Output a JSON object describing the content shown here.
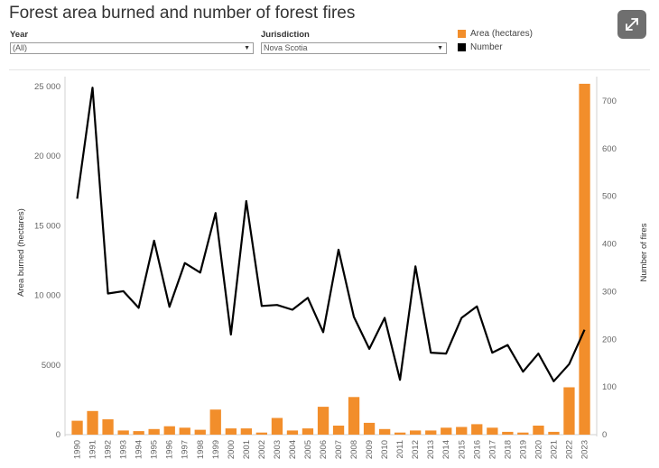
{
  "header": {
    "title": "Forest area burned and number of forest fires"
  },
  "filters": {
    "year": {
      "label": "Year",
      "value": "(All)"
    },
    "jurisdiction": {
      "label": "Jurisdiction",
      "value": "Nova Scotia"
    }
  },
  "legend": {
    "items": [
      {
        "label": "Area (hectares)",
        "color": "#f28e2b"
      },
      {
        "label": "Number",
        "color": "#000000"
      }
    ]
  },
  "chart_data": {
    "type": "bar",
    "categories": [
      "1990",
      "1991",
      "1992",
      "1993",
      "1994",
      "1995",
      "1996",
      "1997",
      "1998",
      "1999",
      "2000",
      "2001",
      "2002",
      "2003",
      "2004",
      "2005",
      "2006",
      "2007",
      "2008",
      "2009",
      "2010",
      "2011",
      "2012",
      "2013",
      "2014",
      "2015",
      "2016",
      "2017",
      "2018",
      "2019",
      "2020",
      "2021",
      "2022",
      "2023"
    ],
    "series": [
      {
        "name": "Area (hectares)",
        "type": "bar",
        "axis": "left",
        "color": "#f28e2b",
        "values": [
          1000,
          1700,
          1100,
          300,
          250,
          400,
          600,
          500,
          350,
          1800,
          450,
          450,
          150,
          1200,
          300,
          450,
          2000,
          650,
          2700,
          850,
          400,
          150,
          300,
          300,
          500,
          550,
          750,
          500,
          200,
          150,
          650,
          200,
          3400,
          25200
        ]
      },
      {
        "name": "Number",
        "type": "line",
        "axis": "right",
        "color": "#000000",
        "values": [
          495,
          728,
          296,
          301,
          266,
          407,
          268,
          360,
          340,
          465,
          210,
          490,
          270,
          272,
          262,
          287,
          215,
          388,
          247,
          180,
          245,
          115,
          353,
          172,
          170,
          245,
          269,
          172,
          188,
          132,
          170,
          112,
          148,
          220
        ]
      }
    ],
    "y_left": {
      "label": "Area burned (hectares)",
      "ylim": [
        0,
        26000
      ],
      "ticks": [
        0,
        5000,
        10000,
        15000,
        20000,
        25000
      ],
      "tick_labels": [
        "0",
        "5000",
        "10 000",
        "15 000",
        "20 000",
        "25 000"
      ]
    },
    "y_right": {
      "label": "Number of fires",
      "ylim": [
        0,
        750
      ],
      "ticks": [
        0,
        100,
        200,
        300,
        400,
        500,
        600,
        700
      ]
    },
    "grid": false
  }
}
